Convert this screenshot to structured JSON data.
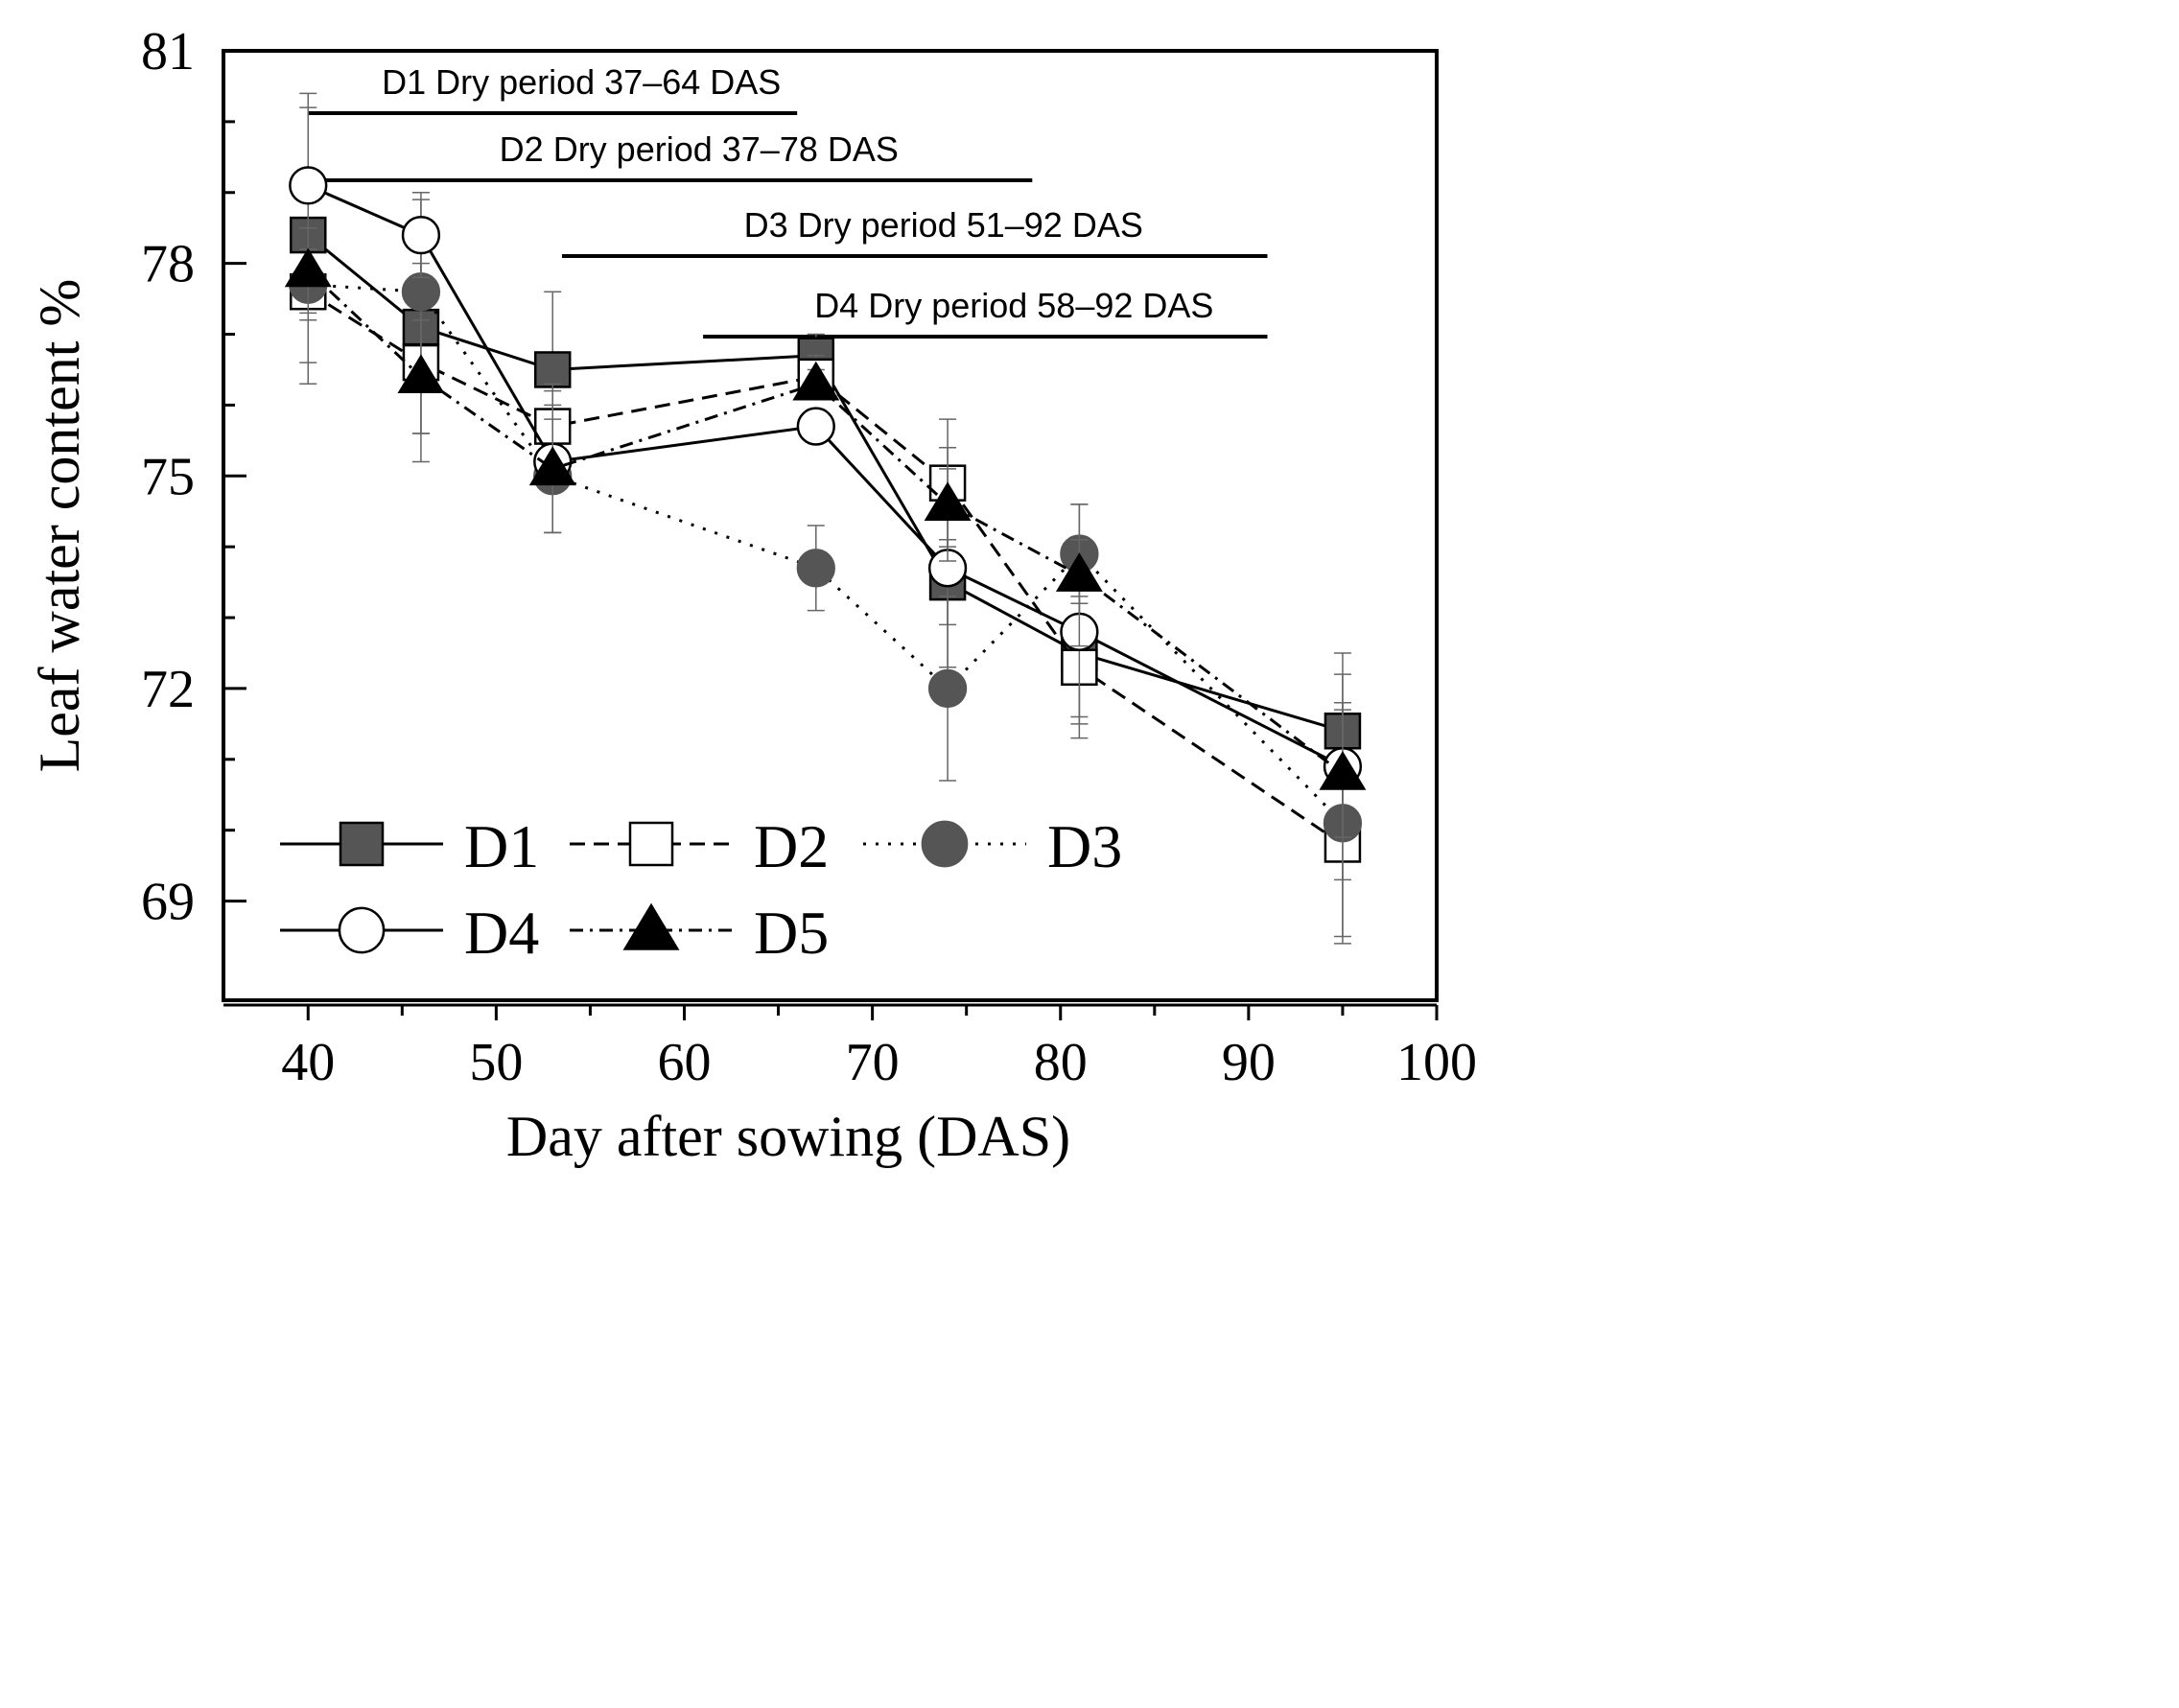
{
  "chart_data": {
    "type": "line",
    "title": "",
    "xlabel": "Day after sowing (DAS)",
    "ylabel": "Leaf water content %",
    "xlim": [
      35.5,
      100
    ],
    "ylim": [
      67.6,
      81
    ],
    "xticks": [
      "40",
      "50",
      "60",
      "70",
      "80",
      "90",
      "100"
    ],
    "xtick_values": [
      40,
      50,
      60,
      70,
      80,
      90,
      100
    ],
    "yticks": [
      "69",
      "72",
      "75",
      "78",
      "81"
    ],
    "ytick_values": [
      69,
      72,
      75,
      78,
      81
    ],
    "legend_position": "bottom-left",
    "x": [
      40,
      46,
      53,
      67,
      74,
      81,
      95
    ],
    "series": [
      {
        "name": "D1",
        "values": [
          78.4,
          77.1,
          76.5,
          76.7,
          73.5,
          72.5,
          71.4
        ],
        "errors": [
          1.8,
          1.5,
          1.1,
          0.3,
          0.6,
          0.9,
          0.8
        ],
        "marker": "square",
        "fill": "#555555",
        "dash": "solid"
      },
      {
        "name": "D2",
        "values": [
          77.6,
          76.6,
          75.7,
          76.4,
          74.9,
          72.3,
          69.8
        ],
        "errors": [
          1.3,
          1.4,
          0.6,
          0.3,
          0.9,
          1.0,
          1.3
        ],
        "marker": "square",
        "fill": "#ffffff",
        "dash": "dashed"
      },
      {
        "name": "D3",
        "values": [
          77.7,
          77.6,
          75.0,
          73.7,
          72.0,
          73.9,
          70.1
        ],
        "errors": [
          0.5,
          1.3,
          0.8,
          0.6,
          1.3,
          0.7,
          1.7
        ],
        "marker": "circle",
        "fill": "#555555",
        "dash": "dotted"
      },
      {
        "name": "D4",
        "values": [
          79.1,
          78.4,
          75.2,
          75.7,
          73.7,
          72.8,
          70.9
        ],
        "errors": [
          1.3,
          0.6,
          1.0,
          0.2,
          1.4,
          1.3,
          1.6
        ],
        "marker": "circle",
        "fill": "#ffffff",
        "dash": "solid"
      },
      {
        "name": "D5",
        "values": [
          77.9,
          76.4,
          75.1,
          76.3,
          74.6,
          73.6,
          70.8
        ],
        "errors": [
          0.6,
          0.8,
          0.9,
          0.2,
          0.8,
          1.0,
          0.9
        ],
        "marker": "triangle",
        "fill": "#000000",
        "dash": "dashdot"
      }
    ],
    "annotations": [
      {
        "text": "D1 Dry period 37–64 DAS",
        "start": 40,
        "end": 66
      },
      {
        "text": "D2 Dry period 37–78 DAS",
        "start": 40,
        "end": 78.5
      },
      {
        "text": "D3 Dry period 51–92 DAS",
        "start": 53.5,
        "end": 91
      },
      {
        "text": "D4 Dry period 58–92 DAS",
        "start": 61,
        "end": 91
      }
    ]
  }
}
